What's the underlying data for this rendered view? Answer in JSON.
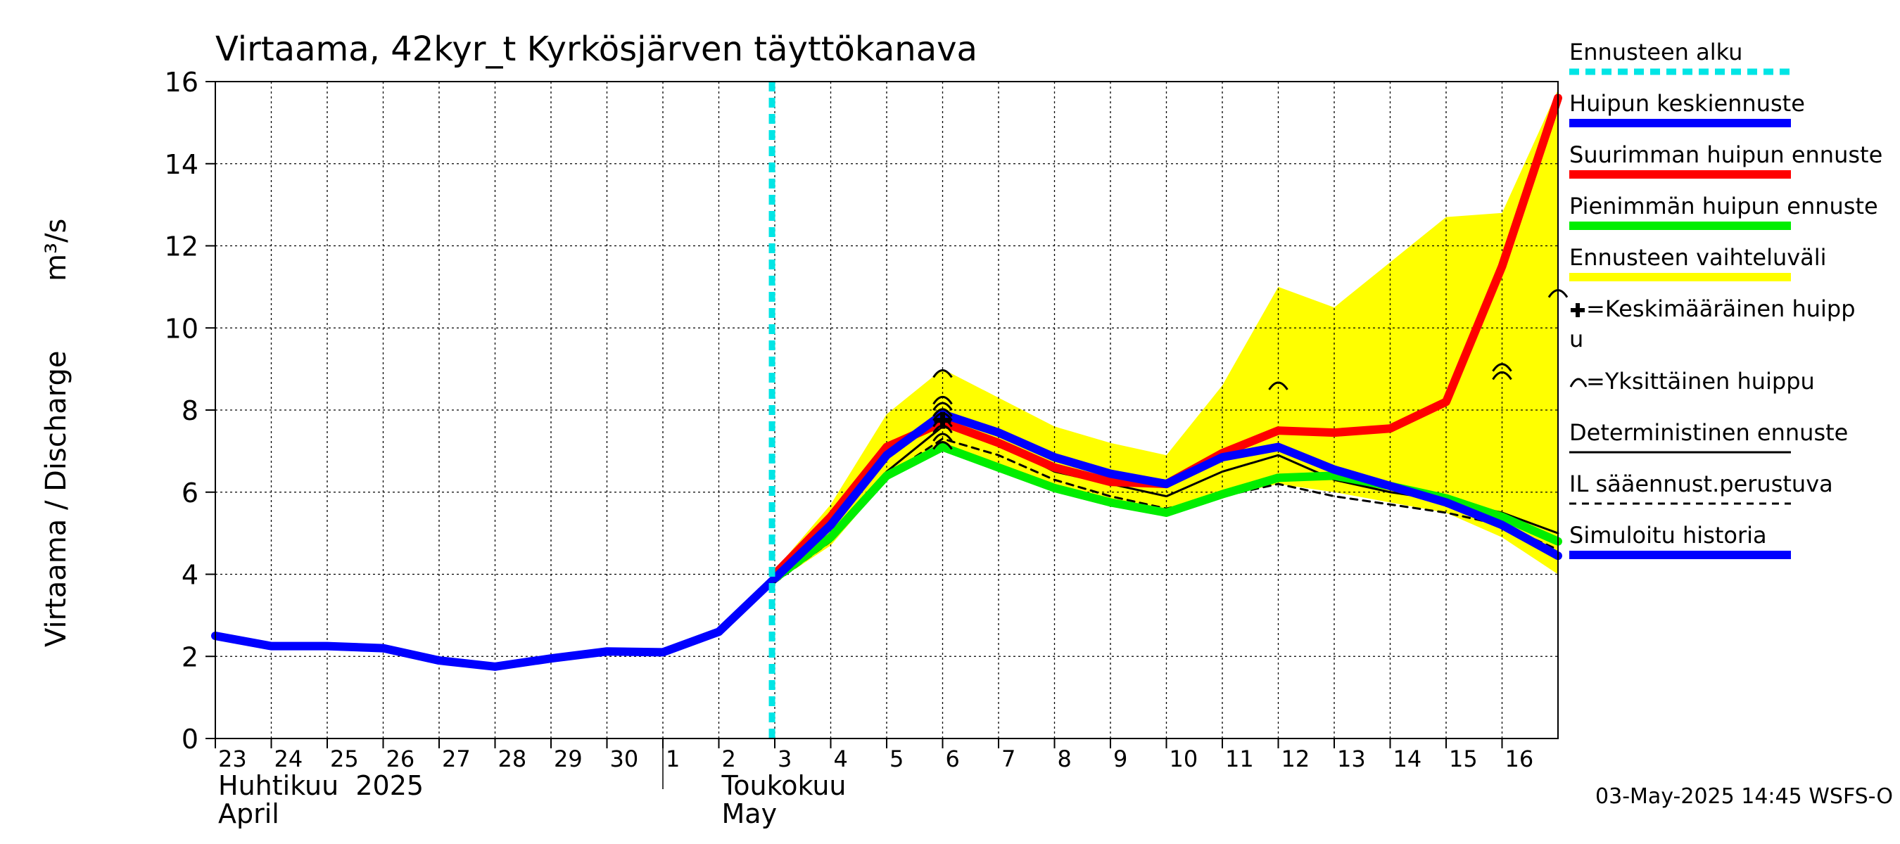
{
  "chart_data": {
    "type": "line",
    "title": "Virtaama, 42kyr_t Kyrkösjärven täyttökanava",
    "ylabel": "Virtaama / Discharge",
    "yunit": "m³/s",
    "ylim": [
      0,
      16
    ],
    "yticks": [
      0,
      2,
      4,
      6,
      8,
      10,
      12,
      14,
      16
    ],
    "x_day_range": [
      -8,
      16
    ],
    "grid": true,
    "x_ticks": [
      {
        "day": -8,
        "label": "23"
      },
      {
        "day": -7,
        "label": "24"
      },
      {
        "day": -6,
        "label": "25"
      },
      {
        "day": -5,
        "label": "26"
      },
      {
        "day": -4,
        "label": "27"
      },
      {
        "day": -3,
        "label": "28"
      },
      {
        "day": -2,
        "label": "29"
      },
      {
        "day": -1,
        "label": "30"
      },
      {
        "day": 0,
        "label": "1"
      },
      {
        "day": 1,
        "label": "2"
      },
      {
        "day": 2,
        "label": "3"
      },
      {
        "day": 3,
        "label": "4"
      },
      {
        "day": 4,
        "label": "5"
      },
      {
        "day": 5,
        "label": "6"
      },
      {
        "day": 6,
        "label": "7"
      },
      {
        "day": 7,
        "label": "8"
      },
      {
        "day": 8,
        "label": "9"
      },
      {
        "day": 9,
        "label": "10"
      },
      {
        "day": 10,
        "label": "11"
      },
      {
        "day": 11,
        "label": "12"
      },
      {
        "day": 12,
        "label": "13"
      },
      {
        "day": 13,
        "label": "14"
      },
      {
        "day": 14,
        "label": "15"
      },
      {
        "day": 15,
        "label": "16"
      }
    ],
    "month_labels": [
      {
        "day": -8,
        "fi": "Huhtikuu  2025",
        "en": "April"
      },
      {
        "day": 1,
        "fi": "Toukokuu",
        "en": "May"
      }
    ],
    "forecast_start_day": 1.95,
    "series": [
      {
        "name": "Simuloitu historia",
        "color": "#0000ff",
        "width": 12,
        "x": [
          -8,
          -7,
          -6,
          -5,
          -4,
          -3,
          -2,
          -1,
          0,
          1,
          2
        ],
        "values": [
          2.5,
          2.25,
          2.25,
          2.2,
          1.9,
          1.75,
          1.95,
          2.12,
          2.1,
          2.6,
          3.9
        ]
      },
      {
        "name": "Deterministinen ennuste",
        "color": "#000000",
        "width": 3,
        "x": [
          2,
          3,
          4,
          5,
          6,
          7,
          8,
          9,
          10,
          11,
          12,
          13,
          14,
          15,
          16
        ],
        "values": [
          3.9,
          5.0,
          6.5,
          7.6,
          7.2,
          6.5,
          6.2,
          5.9,
          6.5,
          6.9,
          6.3,
          6.0,
          5.8,
          5.5,
          5.0
        ]
      },
      {
        "name": "IL sääennust.perustuva",
        "color": "#000000",
        "width": 3,
        "dash": "10,8",
        "x": [
          2,
          3,
          4,
          5,
          6,
          7,
          8,
          9,
          10,
          11,
          12,
          13,
          14,
          15,
          16
        ],
        "values": [
          3.8,
          4.8,
          6.4,
          7.3,
          6.9,
          6.3,
          5.9,
          5.6,
          5.9,
          6.2,
          5.9,
          5.7,
          5.5,
          5.2,
          4.6
        ]
      },
      {
        "name": "Pienimmän huipun ennuste",
        "color": "#00ee00",
        "width": 12,
        "x": [
          2,
          3,
          4,
          5,
          6,
          7,
          8,
          9,
          10,
          11,
          12,
          13,
          14,
          15,
          16
        ],
        "values": [
          3.9,
          4.9,
          6.4,
          7.1,
          6.6,
          6.1,
          5.75,
          5.5,
          5.95,
          6.35,
          6.4,
          6.15,
          5.85,
          5.4,
          4.8
        ]
      },
      {
        "name": "Suurimman huipun ennuste",
        "color": "#ff0000",
        "width": 12,
        "x": [
          2,
          3,
          4,
          5,
          6,
          7,
          8,
          9,
          10,
          11,
          12,
          13,
          14,
          15,
          16
        ],
        "values": [
          4.0,
          5.4,
          7.1,
          7.7,
          7.2,
          6.6,
          6.25,
          6.2,
          6.95,
          7.5,
          7.45,
          7.55,
          8.2,
          11.5,
          15.6
        ]
      },
      {
        "name": "Huipun keskiennuste",
        "color": "#0000ff",
        "width": 12,
        "x": [
          2,
          3,
          4,
          5,
          6,
          7,
          8,
          9,
          10,
          11,
          12,
          13,
          14,
          15,
          16
        ],
        "values": [
          3.9,
          5.2,
          6.9,
          7.9,
          7.45,
          6.85,
          6.45,
          6.2,
          6.85,
          7.1,
          6.55,
          6.15,
          5.75,
          5.2,
          4.45
        ]
      }
    ],
    "band": {
      "name": "Ennusteen vaihteluväli",
      "color": "#ffff00",
      "x": [
        2,
        3,
        4,
        5,
        6,
        7,
        8,
        9,
        10,
        11,
        12,
        13,
        14,
        15,
        16
      ],
      "upper": [
        4.1,
        5.7,
        7.9,
        9.0,
        8.3,
        7.6,
        7.2,
        6.9,
        8.6,
        11.0,
        10.5,
        11.6,
        12.7,
        12.8,
        15.8
      ],
      "lower": [
        3.8,
        4.7,
        6.3,
        7.0,
        6.5,
        6.0,
        5.65,
        5.4,
        5.9,
        6.2,
        6.0,
        5.75,
        5.5,
        4.9,
        4.0
      ]
    },
    "single_peaks": [
      {
        "x": 5.0,
        "y": 8.9
      },
      {
        "x": 5.0,
        "y": 8.25
      },
      {
        "x": 5.0,
        "y": 8.1
      },
      {
        "x": 5.0,
        "y": 7.95
      },
      {
        "x": 5.0,
        "y": 7.85
      },
      {
        "x": 5.0,
        "y": 7.7
      },
      {
        "x": 5.0,
        "y": 7.55
      },
      {
        "x": 5.0,
        "y": 7.35
      },
      {
        "x": 5.0,
        "y": 7.15
      },
      {
        "x": 11.0,
        "y": 8.6
      },
      {
        "x": 15.0,
        "y": 9.05
      },
      {
        "x": 15.0,
        "y": 8.85
      },
      {
        "x": 16.0,
        "y": 10.85
      }
    ],
    "mean_peaks": [
      {
        "x": 5.0,
        "y": 7.75
      }
    ],
    "legend": [
      {
        "label": "Ennusteen alku",
        "style": "dashed",
        "color": "#00e5e5"
      },
      {
        "label": "Huipun keskiennuste",
        "style": "thick",
        "color": "#0000ff"
      },
      {
        "label": "Suurimman huipun ennuste",
        "style": "thick",
        "color": "#ff0000"
      },
      {
        "label": "Pienimmän huipun ennuste",
        "style": "thick",
        "color": "#00ee00"
      },
      {
        "label": "Ennusteen vaihteluväli",
        "style": "thick",
        "color": "#ffff00"
      },
      {
        "label": "=Keskimääräinen huipp",
        "label2": "u",
        "style": "plus-marker",
        "color": "#000000"
      },
      {
        "label": "=Yksittäinen huippu",
        "style": "arc-marker",
        "color": "#000000"
      },
      {
        "label": "Deterministinen ennuste",
        "style": "thin",
        "color": "#000000"
      },
      {
        "label": "IL sääennust.perustuva",
        "style": "thin-dashed",
        "color": "#000000"
      },
      {
        "label": "Simuloitu historia",
        "style": "thick",
        "color": "#0000ff"
      }
    ]
  },
  "footer": {
    "timestamp": "03-May-2025 14:45 WSFS-O"
  }
}
